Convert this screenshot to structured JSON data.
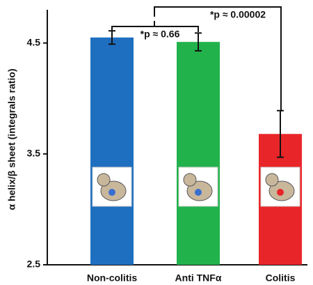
{
  "chart_data": {
    "type": "bar",
    "ylabel": "α helix/β sheet (integrals ratio)",
    "categories": [
      "Non-colitis",
      "Anti TNFα",
      "Colitis"
    ],
    "values": [
      4.55,
      4.51,
      3.68
    ],
    "errors": [
      0.06,
      0.08,
      0.21
    ],
    "colors": [
      "#1f6fc0",
      "#22b24c",
      "#e8262a"
    ],
    "ylim": [
      2.5,
      4.8
    ],
    "yticks": [
      2.5,
      3.5,
      4.5
    ],
    "annotations": [
      "*p ≈ 0.66",
      "*p ≈ 0.00002"
    ]
  }
}
